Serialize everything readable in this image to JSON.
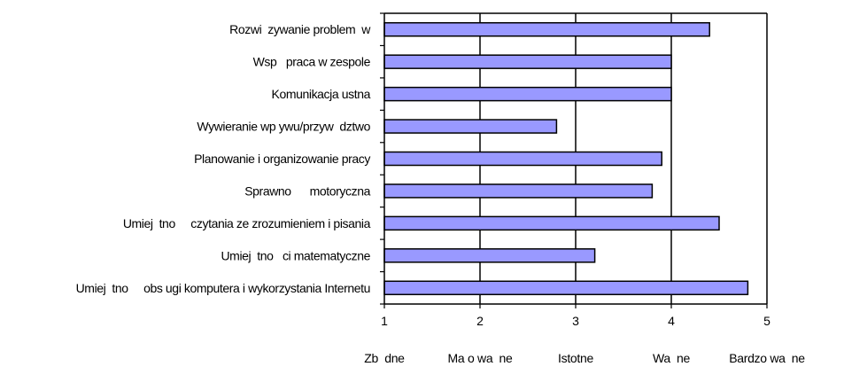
{
  "chart_data": {
    "type": "bar",
    "orientation": "horizontal",
    "categories": [
      "Rozwi  zywanie problem  w",
      "Wsp   praca w zespole",
      "Komunikacja ustna",
      "Wywieranie wp ywu/przyw  dztwo",
      "Planowanie i organizowanie pracy",
      "Sprawno      motoryczna",
      "Umiej  tno     czytania ze zrozumieniem i pisania",
      "Umiej  tno   ci matematyczne",
      "Umiej  tno     obs ugi komputera i wykorzystania Internetu"
    ],
    "values": [
      4.4,
      4.0,
      4.0,
      2.8,
      3.9,
      3.8,
      4.5,
      3.2,
      4.8
    ],
    "xlim": [
      1,
      5
    ],
    "xticks": [
      "1",
      "2",
      "3",
      "4",
      "5"
    ],
    "scale_labels": [
      "Zb  dne",
      "Ma o wa  ne",
      "Istotne",
      "Wa  ne",
      "Bardzo wa  ne"
    ],
    "grid": true,
    "bar_color": "#9999ff",
    "bar_stroke": "#000000"
  }
}
